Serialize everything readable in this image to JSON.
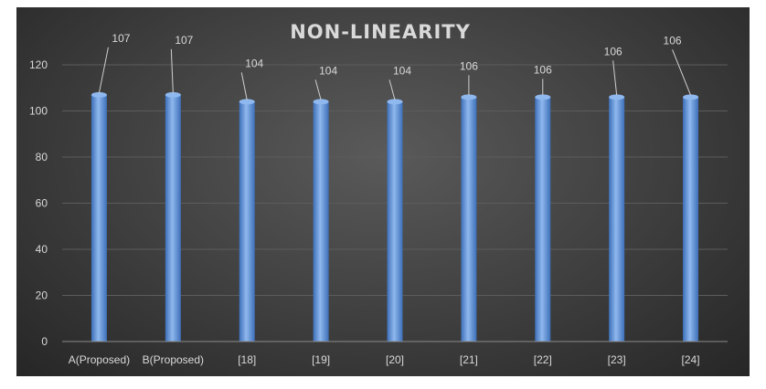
{
  "chart_data": {
    "type": "bar",
    "title": "NON-LINEARITY",
    "categories": [
      "A(Proposed)",
      "B(Proposed)",
      "[18]",
      "[19]",
      "[20]",
      "[21]",
      "[22]",
      "[23]",
      "[24]"
    ],
    "values": [
      107,
      107,
      104,
      104,
      104,
      106,
      106,
      106,
      106
    ],
    "data_labels": [
      "107",
      "107",
      "104",
      "104",
      "104",
      "106",
      "106",
      "106",
      "106"
    ],
    "ylim": [
      0,
      120
    ],
    "yticks": [
      0,
      20,
      40,
      60,
      80,
      100,
      120
    ],
    "xlabel": "",
    "ylabel": "",
    "grid": true,
    "legend": "none",
    "colors": {
      "bar": "#5b8fd6",
      "bar_light": "#8fb8ee",
      "bar_dark": "#3d6fb8",
      "text": "#d9d9d9",
      "grid": "#5c5c5c",
      "axis": "#8a8a8a"
    }
  }
}
